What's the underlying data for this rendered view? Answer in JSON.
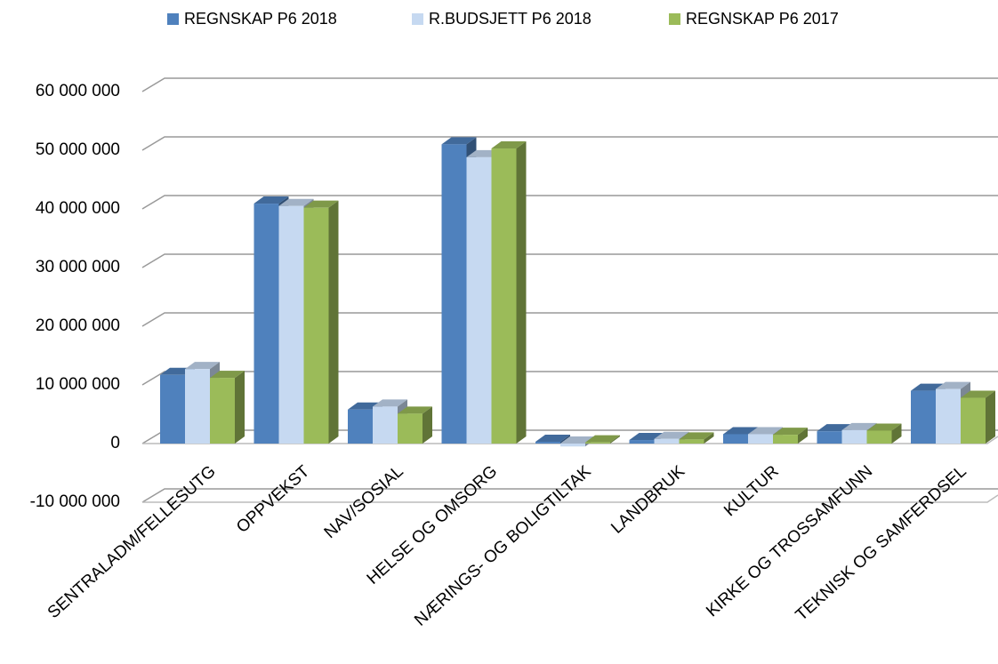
{
  "chart_data": {
    "type": "bar3d",
    "categories": [
      "SENTRALADM/FELLESUTG",
      "OPPVEKST",
      "NAV/SOSIAL",
      "HELSE OG OMSORG",
      "NÆRINGS- OG BOLIGTILTAK",
      "LANDBRUK",
      "KULTUR",
      "KIRKE OG TROSSAMFUNN",
      "TEKNISK OG SAMFERDSEL"
    ],
    "series": [
      {
        "name": "REGNSKAP P6 2018",
        "color": "#4f81bd",
        "values": [
          11700000,
          40900000,
          5800000,
          51000000,
          300000,
          600000,
          1600000,
          2100000,
          9000000
        ]
      },
      {
        "name": "R.BUDSJETT P6 2018",
        "color": "#c6d9f1",
        "values": [
          12700000,
          40500000,
          6300000,
          48800000,
          -500000,
          800000,
          1600000,
          2300000,
          9300000
        ]
      },
      {
        "name": "REGNSKAP P6 2017",
        "color": "#9bbb59",
        "values": [
          11200000,
          40200000,
          5100000,
          50300000,
          200000,
          700000,
          1500000,
          2200000,
          7800000
        ]
      }
    ],
    "ylim": [
      -10000000,
      60000000
    ],
    "yticks": [
      {
        "value": -10000000,
        "label": "-10 000 000"
      },
      0,
      {
        "value": 10000000,
        "label": "10 000 000"
      },
      {
        "value": 20000000,
        "label": "20 000 000"
      },
      {
        "value": 30000000,
        "label": "30 000 000"
      },
      {
        "value": 40000000,
        "label": "40 000 000"
      },
      {
        "value": 50000000,
        "label": "50 000 000"
      },
      {
        "value": 60000000,
        "label": "60 000 000"
      }
    ],
    "grid": true,
    "legend": "top"
  }
}
